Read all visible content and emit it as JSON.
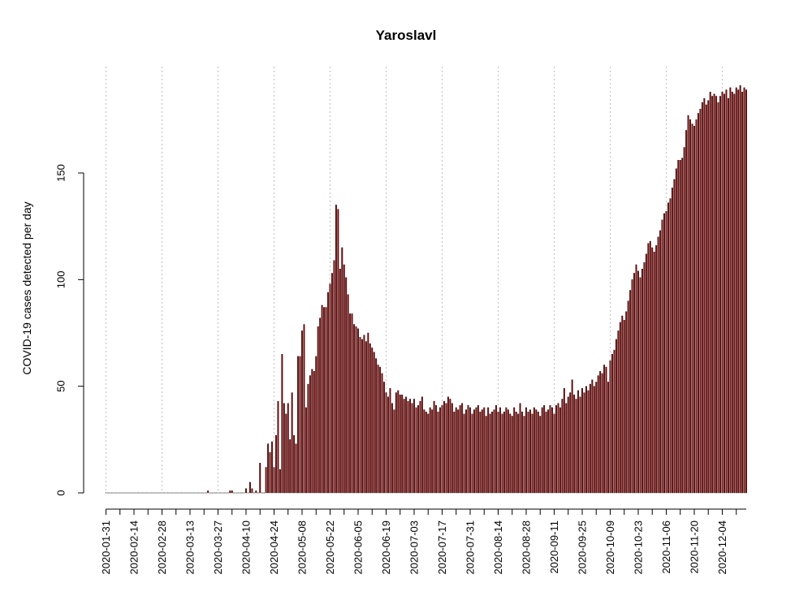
{
  "chart_data": {
    "type": "bar",
    "title": "Yaroslavl",
    "xlabel": "",
    "ylabel": "COVID-19 cases detected per day",
    "x_start": "2020-01-31",
    "x_end": "2020-12-15",
    "ylim": [
      0,
      190
    ],
    "y_ticks": [
      0,
      50,
      100,
      150
    ],
    "x_tick_labels": [
      "2020-01-31",
      "2020-02-14",
      "2020-02-28",
      "2020-03-13",
      "2020-03-27",
      "2020-04-10",
      "2020-04-24",
      "2020-05-08",
      "2020-05-22",
      "2020-06-05",
      "2020-06-19",
      "2020-07-03",
      "2020-07-17",
      "2020-07-31",
      "2020-08-14",
      "2020-08-28",
      "2020-09-11",
      "2020-09-25",
      "2020-10-09",
      "2020-10-23",
      "2020-11-06",
      "2020-11-20",
      "2020-12-04"
    ],
    "grid": "vertical dotted lines every 4 weeks",
    "bar_color": "#8b0000",
    "bar_outline": "#000000",
    "grid_color": "#bebebe",
    "series": [
      {
        "values": [
          0,
          0,
          0,
          0,
          0,
          0,
          0,
          0,
          0,
          0,
          0,
          0,
          0,
          0,
          0,
          0,
          0,
          0,
          0,
          0,
          0,
          0,
          0,
          0,
          0,
          0,
          0,
          0,
          0,
          0,
          0,
          0,
          0,
          0,
          0,
          0,
          0,
          0,
          0,
          0,
          0,
          0,
          0,
          0,
          0,
          0,
          0,
          0,
          0,
          0,
          0,
          1,
          0,
          0,
          0,
          0,
          0,
          0,
          0,
          0,
          0,
          0,
          1,
          1,
          0,
          0,
          0,
          0,
          0,
          0,
          2,
          0,
          5,
          2,
          0,
          1,
          0,
          14,
          0,
          0,
          12,
          23,
          19,
          24,
          12,
          27,
          43,
          11,
          65,
          42,
          37,
          42,
          25,
          47,
          27,
          23,
          64,
          64,
          76,
          79,
          40,
          51,
          55,
          58,
          57,
          64,
          78,
          82,
          88,
          87,
          87,
          94,
          98,
          103,
          109,
          135,
          133,
          105,
          115,
          107,
          101,
          93,
          84,
          84,
          79,
          78,
          77,
          73,
          72,
          74,
          71,
          75,
          70,
          68,
          66,
          63,
          60,
          59,
          56,
          52,
          47,
          45,
          49,
          42,
          39,
          47,
          48,
          46,
          46,
          44,
          45,
          43,
          44,
          42,
          44,
          40,
          41,
          43,
          45,
          39,
          38,
          37,
          40,
          39,
          43,
          41,
          38,
          40,
          41,
          43,
          42,
          45,
          44,
          42,
          38,
          40,
          39,
          41,
          42,
          37,
          39,
          41,
          40,
          37,
          39,
          40,
          41,
          38,
          39,
          40,
          36,
          40,
          37,
          38,
          39,
          41,
          38,
          40,
          37,
          38,
          40,
          39,
          37,
          36,
          40,
          38,
          37,
          42,
          38,
          36,
          40,
          38,
          39,
          37,
          40,
          39,
          38,
          36,
          40,
          41,
          38,
          39,
          41,
          40,
          37,
          41,
          42,
          40,
          44,
          49,
          42,
          45,
          47,
          53,
          46,
          44,
          48,
          45,
          49,
          47,
          50,
          48,
          51,
          53,
          50,
          52,
          55,
          57,
          56,
          60,
          59,
          52,
          62,
          65,
          67,
          72,
          76,
          80,
          83,
          81,
          85,
          90,
          95,
          100,
          103,
          107,
          104,
          101,
          105,
          108,
          112,
          117,
          118,
          115,
          113,
          116,
          120,
          123,
          128,
          131,
          132,
          136,
          138,
          143,
          147,
          152,
          156,
          156,
          157,
          162,
          170,
          177,
          175,
          173,
          172,
          175,
          178,
          180,
          183,
          185,
          182,
          184,
          188,
          186,
          187,
          186,
          183,
          186,
          188,
          187,
          189,
          185,
          190,
          188,
          187,
          190,
          189,
          191,
          188,
          190,
          189
        ]
      }
    ]
  }
}
